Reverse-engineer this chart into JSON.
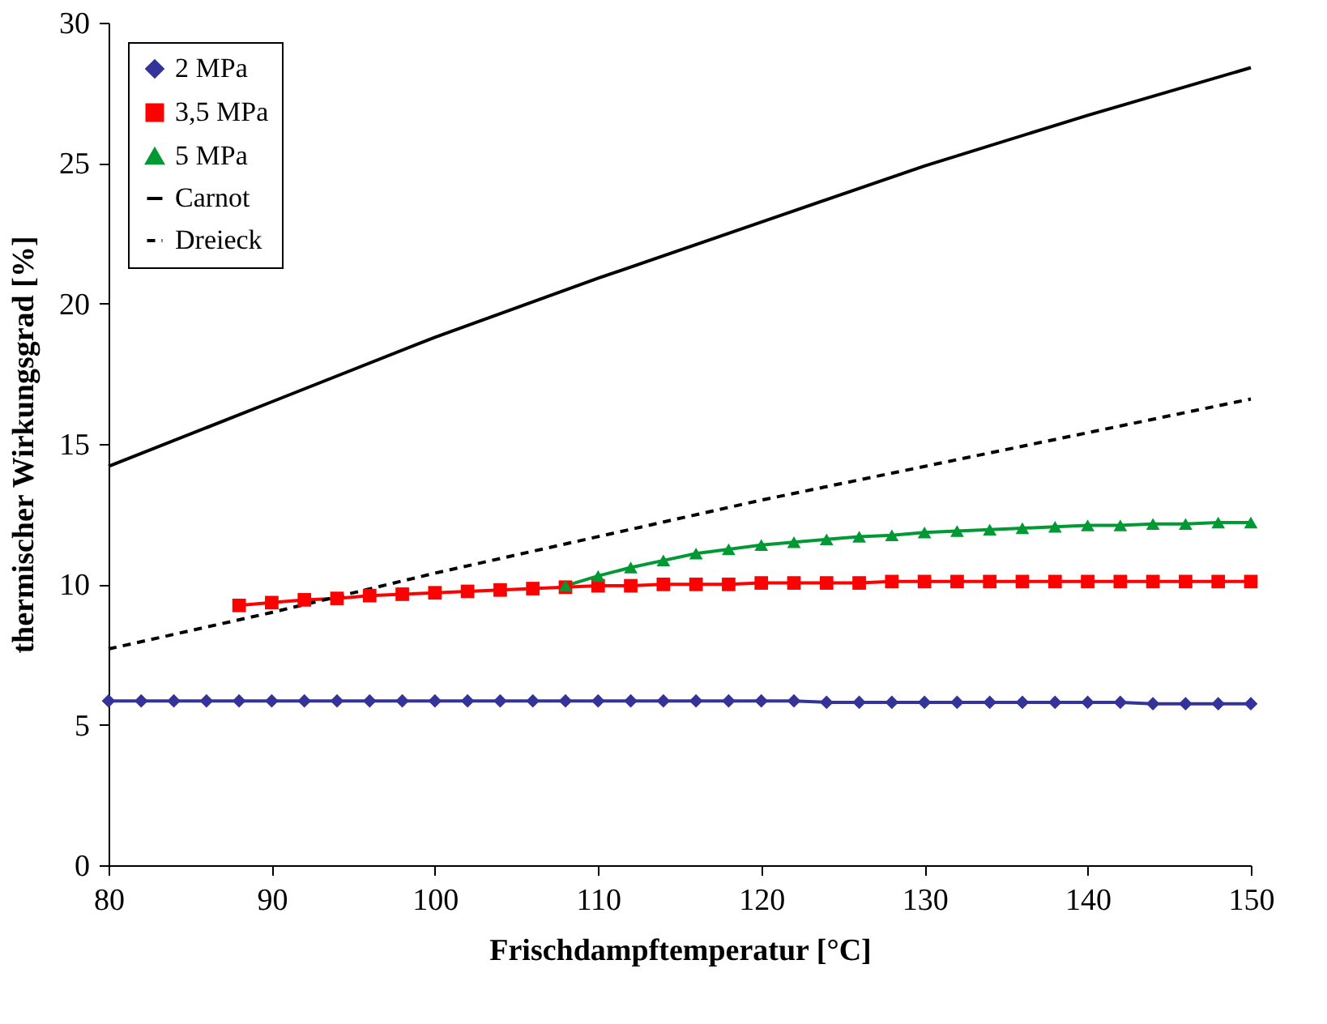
{
  "chart_data": {
    "type": "line",
    "xlabel": "Frischdampftemperatur [°C]",
    "ylabel": "thermischer Wirkungsgrad [%]",
    "xlim": [
      80,
      150
    ],
    "xticks": [
      80,
      90,
      100,
      110,
      120,
      130,
      140,
      150
    ],
    "ylim": [
      0,
      30
    ],
    "yticks": [
      0,
      5,
      10,
      15,
      20,
      25,
      30
    ],
    "grid": false,
    "legend": "top left",
    "series": [
      {
        "name": "2 MPa",
        "color": "#333399",
        "marker": "diamond",
        "line_style": "solid",
        "x": [
          80,
          82,
          84,
          86,
          88,
          90,
          92,
          94,
          96,
          98,
          100,
          102,
          104,
          106,
          108,
          110,
          112,
          114,
          116,
          118,
          120,
          122,
          124,
          126,
          128,
          130,
          132,
          134,
          136,
          138,
          140,
          142,
          144,
          146,
          148,
          150
        ],
        "values": [
          5.85,
          5.85,
          5.85,
          5.85,
          5.85,
          5.85,
          5.85,
          5.85,
          5.85,
          5.85,
          5.85,
          5.85,
          5.85,
          5.85,
          5.85,
          5.85,
          5.85,
          5.85,
          5.85,
          5.85,
          5.85,
          5.85,
          5.8,
          5.8,
          5.8,
          5.8,
          5.8,
          5.8,
          5.8,
          5.8,
          5.8,
          5.8,
          5.75,
          5.75,
          5.75,
          5.75
        ]
      },
      {
        "name": "3,5 MPa",
        "color": "#ff0000",
        "marker": "square",
        "line_style": "solid",
        "x": [
          88,
          90,
          92,
          94,
          96,
          98,
          100,
          102,
          104,
          106,
          108,
          110,
          112,
          114,
          116,
          118,
          120,
          122,
          124,
          126,
          128,
          130,
          132,
          134,
          136,
          138,
          140,
          142,
          144,
          146,
          148,
          150
        ],
        "values": [
          9.25,
          9.35,
          9.45,
          9.5,
          9.6,
          9.65,
          9.7,
          9.75,
          9.8,
          9.85,
          9.9,
          9.95,
          9.95,
          10.0,
          10.0,
          10.0,
          10.05,
          10.05,
          10.05,
          10.05,
          10.1,
          10.1,
          10.1,
          10.1,
          10.1,
          10.1,
          10.1,
          10.1,
          10.1,
          10.1,
          10.1,
          10.1
        ]
      },
      {
        "name": "5 MPa",
        "color": "#009933",
        "marker": "triangle",
        "line_style": "solid",
        "x": [
          108,
          110,
          112,
          114,
          116,
          118,
          120,
          122,
          124,
          126,
          128,
          130,
          132,
          134,
          136,
          138,
          140,
          142,
          144,
          146,
          148,
          150
        ],
        "values": [
          9.95,
          10.3,
          10.6,
          10.85,
          11.1,
          11.25,
          11.4,
          11.5,
          11.6,
          11.7,
          11.75,
          11.85,
          11.9,
          11.95,
          12.0,
          12.05,
          12.1,
          12.1,
          12.15,
          12.15,
          12.2,
          12.2
        ]
      },
      {
        "name": "Carnot",
        "color": "#000000",
        "marker": "none",
        "line_style": "solid",
        "x": [
          80,
          90,
          100,
          110,
          120,
          130,
          140,
          150
        ],
        "values": [
          14.2,
          16.5,
          18.8,
          20.9,
          22.9,
          24.9,
          26.7,
          28.4
        ]
      },
      {
        "name": "Dreieck",
        "color": "#000000",
        "marker": "none",
        "line_style": "dashed",
        "x": [
          80,
          90,
          100,
          110,
          120,
          130,
          140,
          150
        ],
        "values": [
          7.7,
          9.0,
          10.4,
          11.7,
          13.0,
          14.2,
          15.4,
          16.6
        ]
      }
    ]
  }
}
